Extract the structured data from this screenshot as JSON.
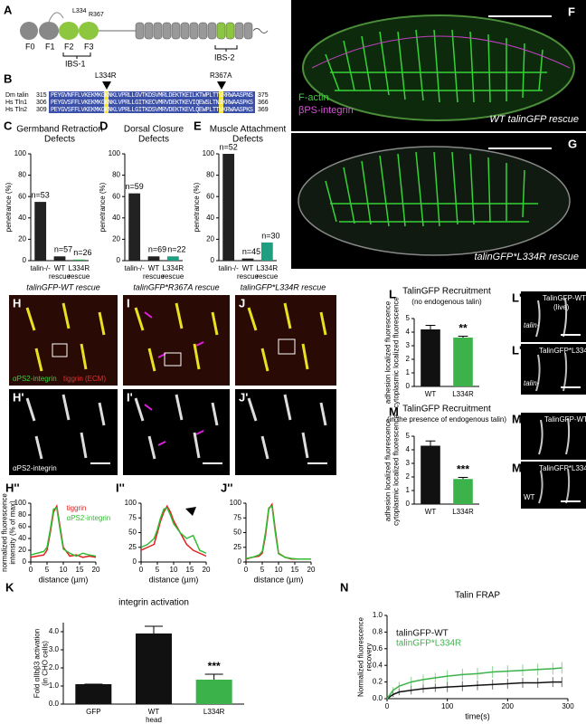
{
  "panels": {
    "A": {
      "label": "A",
      "domains": [
        "F0",
        "F1",
        "F2",
        "F3"
      ],
      "sites": [
        "L334",
        "R367"
      ],
      "regions": [
        "IBS-1",
        "IBS-2"
      ]
    },
    "B": {
      "label": "B",
      "markers": [
        "L334R",
        "R367A"
      ],
      "rows": [
        {
          "name": "Dm talin",
          "start": "315",
          "seq": "PEYGVNFFLVKEKMKGKNKLVPRLLGVTKDSVMRLDEKTKEILKTWPLTTVRRWAASPNS",
          "end": "375"
        },
        {
          "name": "Hs Tln1",
          "start": "306",
          "seq": "PEYGVSFFLVKEKMKGKNKLVPRLLGITKECVMRVDEKTKEVIQEWSLTNIKRWAASPKS",
          "end": "366"
        },
        {
          "name": "Hs Tln2",
          "start": "309",
          "seq": "PEYGVSFFLVKEKMKGKNKLVPRLLGITKDSVMRVDEKTKEVLQEWPLTTVKRWAASPKS",
          "end": "369"
        }
      ]
    },
    "F": {
      "label": "F",
      "legend": [
        "F-actin",
        "βPS-integrin"
      ],
      "caption": "WT talinGFP rescue"
    },
    "G": {
      "label": "G",
      "caption": "talinGFP*L334R rescue"
    },
    "H": {
      "label": "H",
      "caption": "talinGFP-WT rescue",
      "stain1": "αPS2-integrin",
      "stain2": "tiggrin (ECM)"
    },
    "I": {
      "label": "I",
      "caption": "talinGFP*R367A rescue"
    },
    "J": {
      "label": "J",
      "caption": "talinGFP*L334R rescue"
    },
    "H2": {
      "label": "H'",
      "stain": "αPS2-integrin"
    },
    "I2": {
      "label": "I'"
    },
    "J2": {
      "label": "J'"
    },
    "H3": {
      "label": "H''"
    },
    "I3": {
      "label": "I''"
    },
    "J3": {
      "label": "J''"
    },
    "L1": {
      "label": "L'",
      "title": "TalinGFP-WT",
      "note": "(live)",
      "genotype": "talin-"
    },
    "L2": {
      "label": "L''",
      "title": "TalinGFP*L334R",
      "genotype": "talin-"
    },
    "M1": {
      "label": "M'",
      "title": "TalinGFP-WT"
    },
    "M2": {
      "label": "M''",
      "title": "TalinGFP*L334R",
      "genotype": "WT"
    }
  },
  "chart_data": [
    {
      "type": "bar",
      "label": "C",
      "title": [
        "Germband Retraction",
        "Defects"
      ],
      "ylabel": "penetrance (%)",
      "categories": [
        [
          "talin-/-"
        ],
        [
          "WT",
          "rescue"
        ],
        [
          "L334R",
          "rescue"
        ]
      ],
      "values": [
        55,
        4,
        1
      ],
      "value_labels": [
        "n=53",
        "n=57",
        "n=26"
      ],
      "colors": [
        "#222222",
        "#222222",
        "#2e9e4f"
      ],
      "ylim": [
        0,
        100
      ],
      "yticks": [
        0,
        20,
        40,
        60,
        80,
        100
      ]
    },
    {
      "type": "bar",
      "label": "D",
      "title": [
        "Dorsal Closure",
        "Defects"
      ],
      "ylabel": "penetrance (%)",
      "categories": [
        [
          "talin-/-"
        ],
        [
          "WT",
          "rescue"
        ],
        [
          "L334R",
          "rescue"
        ]
      ],
      "values": [
        63,
        4,
        4
      ],
      "value_labels": [
        "n=59",
        "n=69",
        "n=22"
      ],
      "colors": [
        "#222222",
        "#222222",
        "#1f9e80"
      ],
      "ylim": [
        0,
        100
      ],
      "yticks": [
        0,
        20,
        40,
        60,
        80,
        100
      ]
    },
    {
      "type": "bar",
      "label": "E",
      "title": [
        "Muscle Attachment",
        "Defects"
      ],
      "ylabel": "penetrance (%)",
      "categories": [
        [
          "talin-/-"
        ],
        [
          "WT",
          "rescue"
        ],
        [
          "L334R",
          "rescue"
        ]
      ],
      "values": [
        100,
        2,
        17
      ],
      "value_labels": [
        "n=52",
        "n=45",
        "n=30"
      ],
      "colors": [
        "#222222",
        "#222222",
        "#1f9e80"
      ],
      "ylim": [
        0,
        100
      ],
      "yticks": [
        0,
        20,
        40,
        60,
        80,
        100
      ]
    },
    {
      "type": "bar",
      "label": "L",
      "title": [
        "TalinGFP Recruitment"
      ],
      "subtitle": "(no endogenous talin)",
      "ylabel": [
        "adhesion localized fluorescence",
        "cytoplasmic localized fluorescence"
      ],
      "categories": [
        [
          "WT"
        ],
        [
          "L334R"
        ]
      ],
      "values": [
        4.2,
        3.6
      ],
      "errors": [
        0.3,
        0.1
      ],
      "colors": [
        "#111111",
        "#3cb34a"
      ],
      "annotation": "**",
      "ylim": [
        0,
        5
      ],
      "yticks": [
        0,
        1,
        2,
        3,
        4,
        5
      ]
    },
    {
      "type": "bar",
      "label": "M",
      "title": [
        "TalinGFP Recruitment"
      ],
      "subtitle": "(in the presence of endogenous talin)",
      "ylabel": [
        "adhesion localized fluorescence",
        "cytoplasmic localized fluorescence"
      ],
      "categories": [
        [
          "WT"
        ],
        [
          "L334R"
        ]
      ],
      "values": [
        4.3,
        1.85
      ],
      "errors": [
        0.35,
        0.12
      ],
      "colors": [
        "#111111",
        "#3cb34a"
      ],
      "annotation": "***",
      "ylim": [
        0,
        5
      ],
      "yticks": [
        0,
        1,
        2,
        3,
        4,
        5
      ]
    },
    {
      "type": "bar",
      "label": "K",
      "title": [
        "integrin activation"
      ],
      "ylabel": [
        "Fold αIIbβ3 activation",
        "(in CHO cells)"
      ],
      "categories": [
        [
          "GFP"
        ],
        [
          "WT",
          "head"
        ],
        [
          "L334R"
        ]
      ],
      "values": [
        1.1,
        3.9,
        1.35
      ],
      "errors": [
        0,
        0.4,
        0.3
      ],
      "colors": [
        "#111111",
        "#111111",
        "#3cb34a"
      ],
      "annotation": "***",
      "ylim": [
        0,
        4.5
      ],
      "yticks": [
        {
          "value": 0,
          "label": "0.0"
        },
        {
          "value": 1,
          "label": "1.0"
        },
        {
          "value": 2,
          "label": "2.0"
        },
        {
          "value": 3,
          "label": "3.0"
        },
        {
          "value": 4,
          "label": "4.0"
        }
      ]
    },
    {
      "type": "line",
      "ylabel": [
        "normalized fluorescence",
        "intensity (% of max)"
      ],
      "xlabel": "distance (µm)",
      "x": [
        0,
        2,
        4,
        5,
        6,
        7,
        8,
        9,
        10,
        12,
        14,
        16,
        18,
        20
      ],
      "series": [
        {
          "name": "tiggrin",
          "color": "#e02020",
          "values": [
            8,
            10,
            12,
            20,
            50,
            85,
            95,
            60,
            25,
            10,
            12,
            8,
            10,
            8
          ]
        },
        {
          "name": "αPS2-integrin",
          "color": "#33bb33",
          "values": [
            12,
            15,
            18,
            25,
            55,
            90,
            92,
            55,
            22,
            15,
            10,
            15,
            12,
            10
          ]
        }
      ],
      "xlim": [
        0,
        20
      ],
      "xticks": [
        0,
        5,
        10,
        15,
        20
      ],
      "ylim": [
        0,
        100
      ],
      "yticks": [
        0,
        20,
        40,
        60,
        80,
        100
      ]
    },
    {
      "type": "line",
      "xlabel": "distance (µm)",
      "x": [
        0,
        2,
        4,
        5,
        6,
        7,
        8,
        9,
        10,
        12,
        14,
        16,
        18,
        20
      ],
      "series": [
        {
          "color": "#e02020",
          "values": [
            20,
            25,
            30,
            50,
            70,
            85,
            95,
            85,
            70,
            50,
            30,
            20,
            15,
            10
          ]
        },
        {
          "color": "#33bb33",
          "values": [
            25,
            30,
            40,
            55,
            75,
            90,
            92,
            80,
            65,
            50,
            40,
            45,
            20,
            15
          ]
        }
      ],
      "xlim": [
        0,
        20
      ],
      "xticks": [
        0,
        5,
        10,
        15,
        20
      ],
      "ylim": [
        0,
        100
      ],
      "yticks": [
        0,
        25,
        50,
        75,
        100
      ]
    },
    {
      "type": "line",
      "xlabel": "distance (µm)",
      "x": [
        0,
        2,
        4,
        5,
        6,
        7,
        8,
        9,
        10,
        12,
        14,
        16,
        18,
        20
      ],
      "series": [
        {
          "color": "#e02020",
          "values": [
            5,
            8,
            10,
            15,
            45,
            90,
            98,
            55,
            15,
            8,
            5,
            5,
            5,
            5
          ]
        },
        {
          "color": "#33bb33",
          "values": [
            6,
            8,
            12,
            18,
            50,
            92,
            95,
            50,
            14,
            8,
            6,
            5,
            5,
            5
          ]
        }
      ],
      "xlim": [
        0,
        20
      ],
      "xticks": [
        0,
        5,
        10,
        15,
        20
      ],
      "ylim": [
        0,
        100
      ],
      "yticks": [
        0,
        25,
        50,
        75,
        100
      ]
    },
    {
      "type": "line",
      "label": "N",
      "title": [
        "Talin FRAP"
      ],
      "ylabel": [
        "Normalized fluorescence",
        "recovery"
      ],
      "xlabel": "time(s)",
      "x": [
        0,
        10,
        20,
        40,
        60,
        80,
        100,
        125,
        150,
        175,
        200,
        225,
        250,
        275,
        290
      ],
      "series": [
        {
          "name": "talinGFP-WT",
          "color": "#111111",
          "values": [
            0,
            0.05,
            0.08,
            0.1,
            0.12,
            0.13,
            0.14,
            0.15,
            0.16,
            0.17,
            0.18,
            0.19,
            0.19,
            0.2,
            0.2
          ],
          "errors": [
            0,
            0.03,
            0.04,
            0.05,
            0.05,
            0.05,
            0.06,
            0.06,
            0.06,
            0.06,
            0.06,
            0.06,
            0.06,
            0.06,
            0.06
          ]
        },
        {
          "name": "talinGFP*L334R",
          "color": "#3cb34a",
          "values": [
            0,
            0.1,
            0.15,
            0.2,
            0.23,
            0.25,
            0.27,
            0.29,
            0.3,
            0.32,
            0.33,
            0.34,
            0.35,
            0.36,
            0.37
          ],
          "errors": [
            0,
            0.04,
            0.05,
            0.06,
            0.06,
            0.06,
            0.07,
            0.07,
            0.07,
            0.07,
            0.07,
            0.07,
            0.07,
            0.07,
            0.07
          ]
        }
      ],
      "xlim": [
        0,
        300
      ],
      "xticks": [
        0,
        100,
        200,
        300
      ],
      "ylim": [
        0,
        1
      ],
      "yticks": [
        {
          "value": 0,
          "label": "0.0"
        },
        {
          "value": 0.2,
          "label": "0.2"
        },
        {
          "value": 0.4,
          "label": "0.4"
        },
        {
          "value": 0.6,
          "label": "0.6"
        },
        {
          "value": 0.8,
          "label": "0.8"
        },
        {
          "value": 1,
          "label": "1.0"
        }
      ]
    }
  ]
}
